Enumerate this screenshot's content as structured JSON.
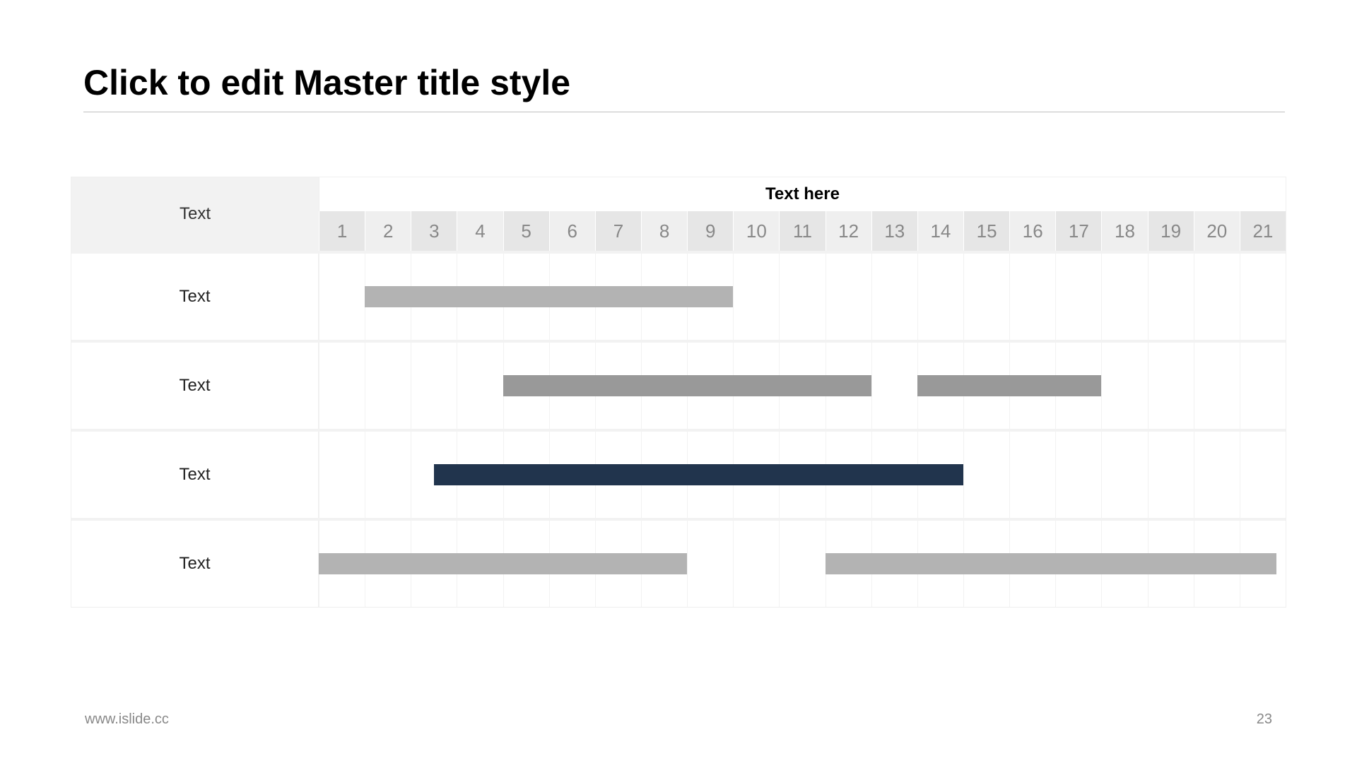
{
  "title": "Click to edit Master title style",
  "gantt": {
    "header_label": "Text",
    "timeline_label": "Text here",
    "columns": 21,
    "column_labels": [
      "1",
      "2",
      "3",
      "4",
      "5",
      "6",
      "7",
      "8",
      "9",
      "10",
      "11",
      "12",
      "13",
      "14",
      "15",
      "16",
      "17",
      "18",
      "19",
      "20",
      "21"
    ],
    "header_bg": "#f2f2f2",
    "num_cell_bg_alt": "#e6e6e6",
    "num_cell_bg": "#efefef",
    "grid_line_color": "#f2f2f2",
    "row_label_fontsize": 24,
    "header_fontsize": 24,
    "num_fontsize": 26,
    "title_fontsize": 50,
    "rows": [
      {
        "label": "Text",
        "bars": [
          {
            "start": 2,
            "end": 9,
            "color": "#b3b3b3"
          }
        ]
      },
      {
        "label": "Text",
        "bars": [
          {
            "start": 5,
            "end": 12,
            "color": "#999999"
          },
          {
            "start": 14,
            "end": 17,
            "color": "#999999"
          }
        ]
      },
      {
        "label": "Text",
        "bars": [
          {
            "start": 3.5,
            "end": 14,
            "color": "#21344d"
          }
        ]
      },
      {
        "label": "Text",
        "bars": [
          {
            "start": 1,
            "end": 8,
            "color": "#b3b3b3"
          },
          {
            "start": 12,
            "end": 20.8,
            "color": "#b3b3b3"
          }
        ]
      }
    ]
  },
  "footer": {
    "url": "www.islide.cc",
    "page": "23"
  },
  "colors": {
    "title_text": "#000000",
    "rule": "#bfbfbf",
    "num_text": "#888888",
    "row_label_text": "#222222",
    "footer_text": "#888888",
    "background": "#ffffff"
  }
}
